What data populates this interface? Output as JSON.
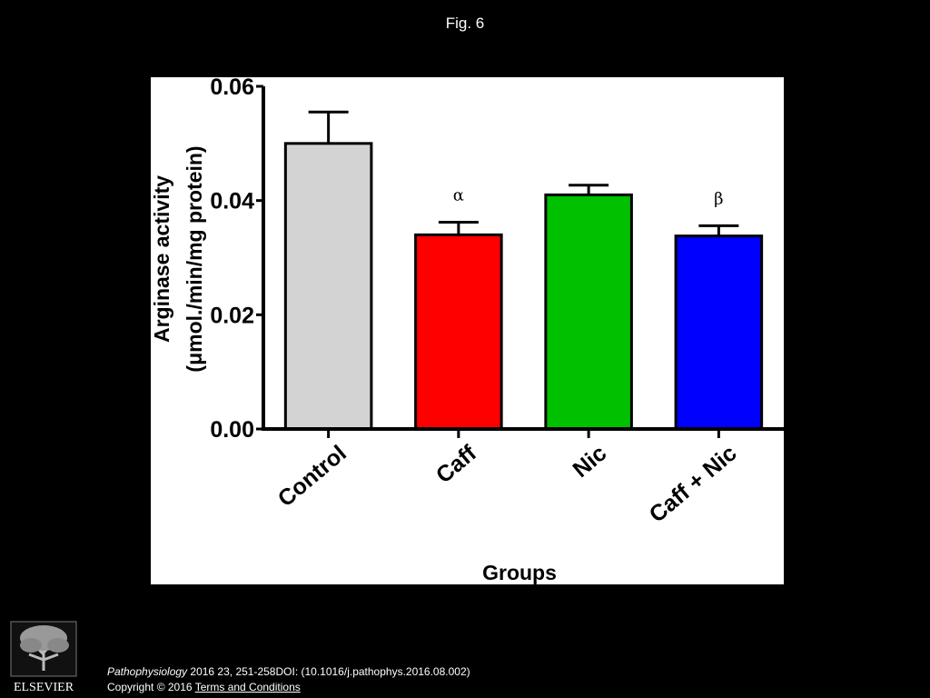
{
  "figure_label": "Fig. 6",
  "chart_data": {
    "type": "bar",
    "categories": [
      "Control",
      "Caff",
      "Nic",
      "Caff + Nic"
    ],
    "values": [
      0.05,
      0.034,
      0.041,
      0.0338
    ],
    "errors": [
      0.0055,
      0.0022,
      0.0017,
      0.0018
    ],
    "bar_colors": [
      "#d3d3d3",
      "#ff0000",
      "#00c000",
      "#0000ff"
    ],
    "annotations": [
      "",
      "α",
      "",
      "β"
    ],
    "ylabel_line1": "Arginase activity",
    "ylabel_line2": "(μmol./min/mg protein)",
    "xlabel": "Groups",
    "ylim": [
      0,
      0.06
    ],
    "yticks": [
      "0.00",
      "0.02",
      "0.04",
      "0.06"
    ],
    "ytick_values": [
      0,
      0.02,
      0.04,
      0.06
    ]
  },
  "footer": {
    "journal": "Pathophysiology",
    "citation": " 2016 23, 251-258DOI: (10.1016/j.pathophys.2016.08.002)",
    "copyright": "Copyright © 2016 ",
    "terms_link": " Terms and Conditions"
  },
  "logo": {
    "wordmark": "ELSEVIER"
  }
}
